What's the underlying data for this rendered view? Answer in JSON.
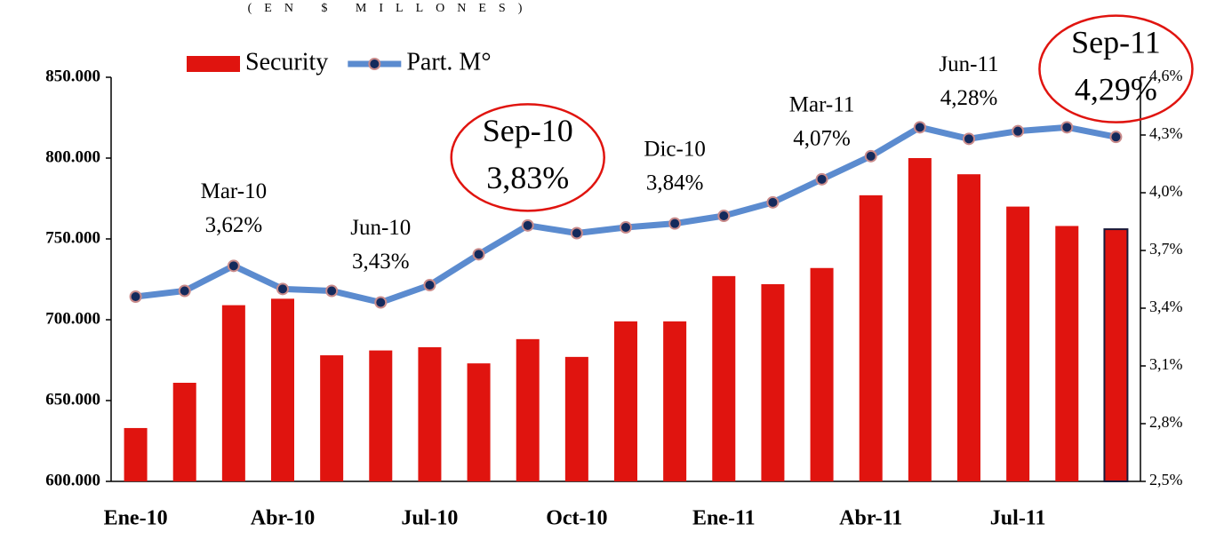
{
  "chart_data": {
    "type": "bar-line",
    "subtitle": "(EN $ MILLONES)",
    "categories": [
      "Ene-10",
      null,
      null,
      "Abr-10",
      null,
      null,
      "Jul-10",
      null,
      null,
      "Oct-10",
      null,
      null,
      "Ene-11",
      null,
      null,
      "Abr-11",
      null,
      null,
      "Jul-11",
      null,
      null
    ],
    "series": [
      {
        "name": "Security",
        "type": "bar",
        "color": "#e0140f",
        "values": [
          633000,
          661000,
          709000,
          713000,
          678000,
          681000,
          683000,
          673000,
          688000,
          677000,
          699000,
          699000,
          727000,
          722000,
          732000,
          777000,
          800000,
          790000,
          770000,
          758000,
          756000
        ]
      },
      {
        "name": "Part. M°",
        "type": "line",
        "axis": "y2",
        "color": "#5b8bcf",
        "marker_color": "#142a5c",
        "values": [
          3.46,
          3.49,
          3.62,
          3.5,
          3.49,
          3.43,
          3.52,
          3.68,
          3.83,
          3.79,
          3.82,
          3.84,
          3.88,
          3.95,
          4.07,
          4.19,
          4.34,
          4.28,
          4.32,
          4.34,
          4.29
        ],
        "point_labels": [
          null,
          null,
          "Mar-10",
          null,
          null,
          "Jun-10",
          null,
          null,
          "Sep-10",
          null,
          null,
          "Dic-10",
          null,
          null,
          "Mar-11",
          null,
          null,
          "Jun-11",
          null,
          null,
          "Sep-11"
        ],
        "value_labels": [
          null,
          null,
          "3,62%",
          null,
          null,
          "3,43%",
          null,
          null,
          "3,83%",
          null,
          null,
          "3,84%",
          null,
          null,
          "4,07%",
          null,
          null,
          "4,28%",
          null,
          null,
          "4,29%"
        ]
      }
    ],
    "highlighted": [
      "Sep-10",
      "Sep-11"
    ],
    "ylim": [
      600000,
      850000
    ],
    "yticks": [
      {
        "value": 600000,
        "label": "600.000"
      },
      {
        "value": 650000,
        "label": "650.000"
      },
      {
        "value": 700000,
        "label": "700.000"
      },
      {
        "value": 750000,
        "label": "750.000"
      },
      {
        "value": 800000,
        "label": "800.000"
      },
      {
        "value": 850000,
        "label": "850.000"
      }
    ],
    "y2lim": [
      2.5,
      4.6
    ],
    "y2ticks": [
      {
        "value": 2.5,
        "label": "2,5%"
      },
      {
        "value": 2.8,
        "label": "2,8%"
      },
      {
        "value": 3.1,
        "label": "3,1%"
      },
      {
        "value": 3.4,
        "label": "3,4%"
      },
      {
        "value": 3.7,
        "label": "3,7%"
      },
      {
        "value": 4.0,
        "label": "4,0%"
      },
      {
        "value": 4.3,
        "label": "4,3%"
      },
      {
        "value": 4.6,
        "label": "4,6%"
      }
    ],
    "legend": "top-left",
    "grid": false
  }
}
